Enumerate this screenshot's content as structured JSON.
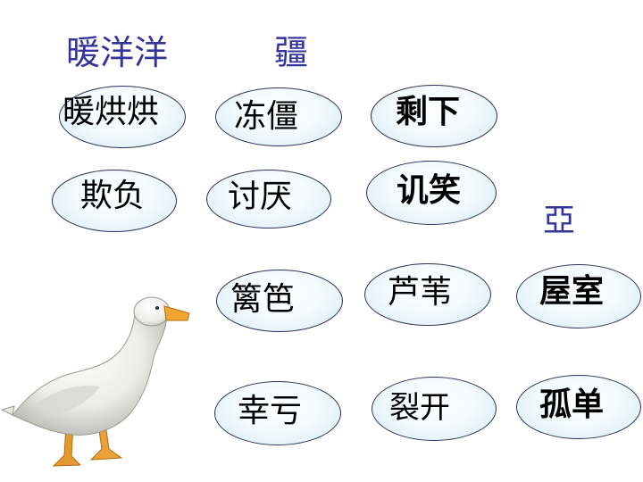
{
  "headings": {
    "warm": "暖洋洋",
    "jiang": "疆",
    "ya": "亞"
  },
  "words": {
    "nuan_hong_hong": "暖烘烘",
    "dong_jiang": "冻僵",
    "sheng_xia": "剩下",
    "qi_fu": "欺负",
    "tao_yan": "讨厌",
    "ji_xiao": "讥笑",
    "li_ba": "篱笆",
    "lu_wei": "芦苇",
    "e_shi": "屋室",
    "xing_kui": "幸亏",
    "lie_kai": "裂开",
    "gu_dan": "孤单"
  },
  "colors": {
    "heading": "#33339a",
    "oval_border": "#30305a",
    "oval_fill": "#d6ecf8"
  },
  "image": {
    "subject": "white-duck"
  }
}
